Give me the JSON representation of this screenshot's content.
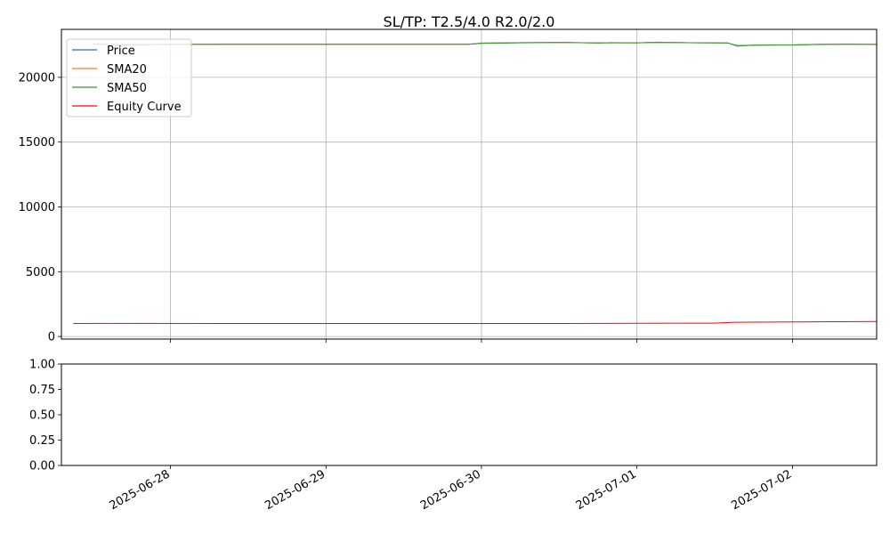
{
  "chart_data": [
    {
      "type": "line",
      "title": "SL/TP: T2.5/4.0 R2.0/2.0",
      "xlabel": "",
      "ylabel": "",
      "x_type": "date",
      "xlim": [
        "2025-06-27T07:10:00",
        "2025-07-02T13:00:00"
      ],
      "ylim": [
        -200,
        23700
      ],
      "xticks": [
        "2025-06-28",
        "2025-06-29",
        "2025-06-30",
        "2025-07-01",
        "2025-07-02"
      ],
      "yticks": [
        0,
        5000,
        10000,
        15000,
        20000
      ],
      "ytick_labels": [
        "0",
        "5000",
        "10000",
        "15000",
        "20000"
      ],
      "grid": true,
      "legend_position": "upper left",
      "series": [
        {
          "name": "Price",
          "color": "#1f77b4",
          "points": [
            [
              "2025-06-27T12:00:00",
              22570
            ],
            [
              "2025-06-27T14:00:00",
              22560
            ],
            [
              "2025-06-27T16:00:00",
              22450
            ],
            [
              "2025-06-27T18:00:00",
              22520
            ],
            [
              "2025-06-28T00:00:00",
              22540
            ],
            [
              "2025-06-28T12:00:00",
              22550
            ],
            [
              "2025-06-29T00:00:00",
              22550
            ],
            [
              "2025-06-29T12:00:00",
              22550
            ],
            [
              "2025-06-29T22:00:00",
              22550
            ],
            [
              "2025-06-30T00:00:00",
              22640
            ],
            [
              "2025-06-30T06:00:00",
              22680
            ],
            [
              "2025-06-30T12:00:00",
              22700
            ],
            [
              "2025-06-30T18:00:00",
              22650
            ],
            [
              "2025-06-30T20:00:00",
              22680
            ],
            [
              "2025-07-01T00:00:00",
              22660
            ],
            [
              "2025-07-01T03:00:00",
              22710
            ],
            [
              "2025-07-01T08:00:00",
              22670
            ],
            [
              "2025-07-01T14:00:00",
              22650
            ],
            [
              "2025-07-01T15:30:00",
              22400
            ],
            [
              "2025-07-01T18:00:00",
              22480
            ],
            [
              "2025-07-02T00:00:00",
              22500
            ],
            [
              "2025-07-02T04:00:00",
              22550
            ],
            [
              "2025-07-02T08:00:00",
              22560
            ],
            [
              "2025-07-02T13:00:00",
              22540
            ]
          ]
        },
        {
          "name": "SMA20",
          "color": "#ff7f0e",
          "points": [
            [
              "2025-06-27T12:00:00",
              22570
            ],
            [
              "2025-06-27T14:00:00",
              22560
            ],
            [
              "2025-06-27T16:00:00",
              22470
            ],
            [
              "2025-06-27T18:00:00",
              22510
            ],
            [
              "2025-06-28T00:00:00",
              22540
            ],
            [
              "2025-06-28T12:00:00",
              22550
            ],
            [
              "2025-06-29T00:00:00",
              22550
            ],
            [
              "2025-06-29T12:00:00",
              22550
            ],
            [
              "2025-06-29T22:00:00",
              22550
            ],
            [
              "2025-06-30T00:00:00",
              22630
            ],
            [
              "2025-06-30T06:00:00",
              22670
            ],
            [
              "2025-06-30T12:00:00",
              22700
            ],
            [
              "2025-06-30T18:00:00",
              22650
            ],
            [
              "2025-06-30T20:00:00",
              22670
            ],
            [
              "2025-07-01T00:00:00",
              22660
            ],
            [
              "2025-07-01T03:00:00",
              22700
            ],
            [
              "2025-07-01T08:00:00",
              22670
            ],
            [
              "2025-07-01T14:00:00",
              22650
            ],
            [
              "2025-07-01T15:30:00",
              22430
            ],
            [
              "2025-07-01T18:00:00",
              22480
            ],
            [
              "2025-07-02T00:00:00",
              22500
            ],
            [
              "2025-07-02T04:00:00",
              22540
            ],
            [
              "2025-07-02T08:00:00",
              22560
            ],
            [
              "2025-07-02T13:00:00",
              22540
            ]
          ]
        },
        {
          "name": "SMA50",
          "color": "#2ca02c",
          "points": [
            [
              "2025-06-27T12:00:00",
              22570
            ],
            [
              "2025-06-27T14:00:00",
              22560
            ],
            [
              "2025-06-27T16:00:00",
              22490
            ],
            [
              "2025-06-27T18:00:00",
              22510
            ],
            [
              "2025-06-28T00:00:00",
              22540
            ],
            [
              "2025-06-28T12:00:00",
              22550
            ],
            [
              "2025-06-29T00:00:00",
              22550
            ],
            [
              "2025-06-29T12:00:00",
              22550
            ],
            [
              "2025-06-29T22:00:00",
              22550
            ],
            [
              "2025-06-30T00:00:00",
              22620
            ],
            [
              "2025-06-30T06:00:00",
              22660
            ],
            [
              "2025-06-30T12:00:00",
              22690
            ],
            [
              "2025-06-30T18:00:00",
              22650
            ],
            [
              "2025-06-30T20:00:00",
              22660
            ],
            [
              "2025-07-01T00:00:00",
              22660
            ],
            [
              "2025-07-01T03:00:00",
              22690
            ],
            [
              "2025-07-01T08:00:00",
              22670
            ],
            [
              "2025-07-01T14:00:00",
              22650
            ],
            [
              "2025-07-01T15:30:00",
              22460
            ],
            [
              "2025-07-01T18:00:00",
              22480
            ],
            [
              "2025-07-02T00:00:00",
              22500
            ],
            [
              "2025-07-02T04:00:00",
              22530
            ],
            [
              "2025-07-02T08:00:00",
              22555
            ],
            [
              "2025-07-02T13:00:00",
              22540
            ]
          ]
        },
        {
          "name": "Equity Curve",
          "color": "#ff0000",
          "points": [
            [
              "2025-06-27T09:00:00",
              1000
            ],
            [
              "2025-06-27T14:00:00",
              1010
            ],
            [
              "2025-06-28T12:00:00",
              1000
            ],
            [
              "2025-06-29T12:00:00",
              1000
            ],
            [
              "2025-06-30T12:00:00",
              1005
            ],
            [
              "2025-07-01T00:00:00",
              1020
            ],
            [
              "2025-07-01T12:00:00",
              1030
            ],
            [
              "2025-07-01T15:00:00",
              1100
            ],
            [
              "2025-07-02T00:00:00",
              1120
            ],
            [
              "2025-07-02T13:00:00",
              1150
            ]
          ]
        }
      ]
    },
    {
      "type": "line",
      "title": "",
      "xlabel": "",
      "ylabel": "",
      "ylim": [
        0,
        1
      ],
      "yticks": [
        0,
        0.25,
        0.5,
        0.75,
        1
      ],
      "ytick_labels": [
        "0.00",
        "0.25",
        "0.50",
        "0.75",
        "1.00"
      ],
      "xticks": [
        "2025-06-28",
        "2025-06-29",
        "2025-06-30",
        "2025-07-01",
        "2025-07-02"
      ],
      "grid": false,
      "series": []
    }
  ]
}
